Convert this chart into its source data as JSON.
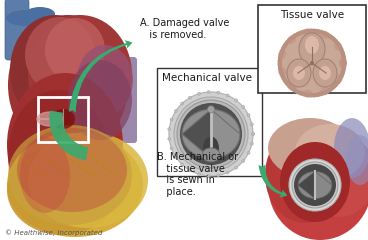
{
  "bg_color": "#ffffff",
  "text_A": "A. Damaged valve\n   is removed.",
  "text_B": "B. Mechanical or\n   tissue valve\n   is sewn in\n   place.",
  "label_mechanical": "Mechanical valve",
  "label_tissue": "Tissue valve",
  "copyright": "© Healthwise, Incorporated",
  "text_color": "#1a1a1a",
  "arrow_color": "#3aaa6e",
  "font_size_labels": 7.0,
  "font_size_copyright": 5.0
}
